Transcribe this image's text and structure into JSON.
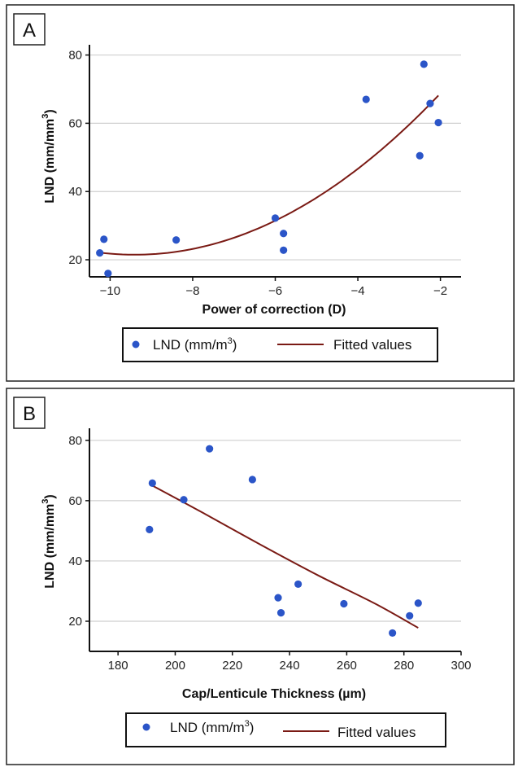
{
  "chart_data": [
    {
      "panel_label": "A",
      "type": "scatter",
      "xlabel": "Power of correction (D)",
      "ylabel_main": "LND (mm/mm",
      "ylabel_sup": "3",
      "ylabel_end": ")",
      "xlim": [
        -10.5,
        -1.5
      ],
      "ylim": [
        15,
        83
      ],
      "xticks": [
        -10,
        -8,
        -6,
        -4,
        -2
      ],
      "yticks": [
        20,
        40,
        60,
        80
      ],
      "grid": "horizontal",
      "series": [
        {
          "name": "LND (mm/m3)",
          "kind": "points",
          "color": "#2b55c8",
          "points": [
            [
              -10.25,
              22
            ],
            [
              -10.15,
              26
            ],
            [
              -10.05,
              16
            ],
            [
              -8.4,
              25.8
            ],
            [
              -6.0,
              32.2
            ],
            [
              -5.8,
              27.7
            ],
            [
              -5.8,
              22.8
            ],
            [
              -3.8,
              67
            ],
            [
              -2.5,
              50.5
            ],
            [
              -2.4,
              77.3
            ],
            [
              -2.25,
              65.8
            ],
            [
              -2.05,
              60.2
            ]
          ]
        },
        {
          "name": "Fitted values",
          "kind": "line",
          "color": "#7a1a14",
          "fit": "quadratic",
          "coefficients": [
            97.8,
            16.24,
            0.864
          ],
          "x_range": [
            -10.25,
            -2.05
          ]
        }
      ],
      "legend": {
        "position": "bottom",
        "point_label_main": "LND (mm/m",
        "point_label_sup": "3",
        "point_label_end": ")",
        "line_label": "Fitted values"
      }
    },
    {
      "panel_label": "B",
      "type": "scatter",
      "xlabel": "Cap/Lenticule Thickness (µm)",
      "ylabel_main": "LND (mm/mm",
      "ylabel_sup": "3",
      "ylabel_end": ")",
      "xlim": [
        170,
        300
      ],
      "ylim": [
        10,
        84
      ],
      "xticks": [
        180,
        200,
        220,
        240,
        260,
        280,
        300
      ],
      "yticks": [
        20,
        40,
        60,
        80
      ],
      "grid": "horizontal",
      "series": [
        {
          "name": "LND (mm/m3)",
          "kind": "points",
          "color": "#2b55c8",
          "points": [
            [
              191,
              50.4
            ],
            [
              192,
              65.8
            ],
            [
              203,
              60.3
            ],
            [
              212,
              77.2
            ],
            [
              227,
              67
            ],
            [
              236,
              27.8
            ],
            [
              237,
              22.8
            ],
            [
              243,
              32.3
            ],
            [
              259,
              25.8
            ],
            [
              276,
              16.1
            ],
            [
              282,
              21.8
            ],
            [
              285,
              26
            ]
          ]
        },
        {
          "name": "Fitted values",
          "kind": "line",
          "color": "#7a1a14",
          "fit": "curve",
          "points": [
            [
              191,
              65.5
            ],
            [
              210,
              55.8
            ],
            [
              230,
              45.3
            ],
            [
              250,
              35.2
            ],
            [
              270,
              25.8
            ],
            [
              285,
              17.8
            ]
          ]
        }
      ],
      "legend": {
        "position": "bottom",
        "point_label_main": "LND (mm/m",
        "point_label_sup": "3",
        "point_label_end": ")",
        "line_label": "Fitted values"
      }
    }
  ]
}
